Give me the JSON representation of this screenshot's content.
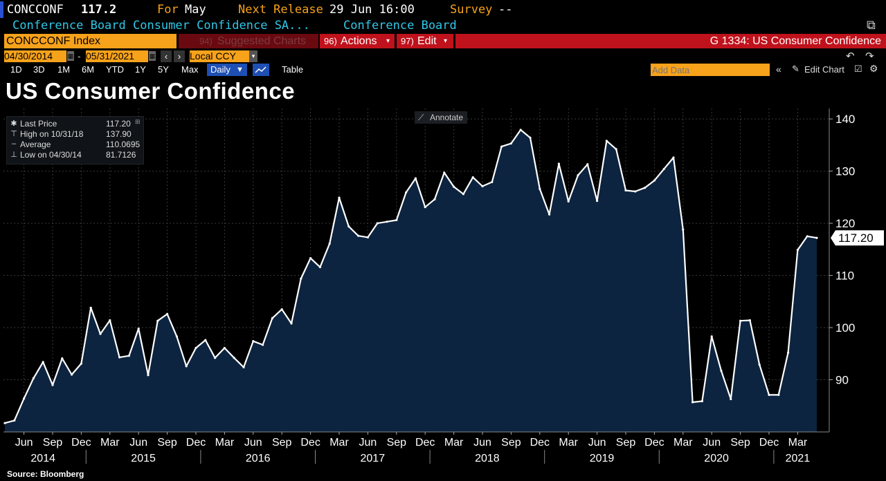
{
  "header": {
    "ticker": "CONCCONF",
    "price": "117.2",
    "for_label": "For",
    "for_value": "May",
    "next_release_label": "Next Release",
    "next_release_value": "29 Jun 16:00",
    "survey_label": "Survey",
    "survey_value": "--",
    "description": "Conference Board Consumer Confidence SA...",
    "source_name": "Conference Board"
  },
  "toolbar": {
    "security": "CONCCONF Index",
    "suggested_num": "94)",
    "suggested_label": "Suggested Charts",
    "actions_num": "96)",
    "actions_label": "Actions",
    "edit_num": "97)",
    "edit_label": "Edit",
    "chart_id": "G 1334: US Consumer Confidence",
    "date_from": "04/30/2014",
    "date_to": "05/31/2021",
    "currency": "Local CCY",
    "periods": [
      "1D",
      "3D",
      "1M",
      "6M",
      "YTD",
      "1Y",
      "5Y",
      "Max"
    ],
    "frequency": "Daily",
    "table_label": "Table",
    "add_data_placeholder": "Add Data",
    "edit_chart_label": "Edit Chart"
  },
  "legend": {
    "items": [
      {
        "label": "Last Price",
        "value": "117.20"
      },
      {
        "label": "High on 10/31/18",
        "value": "137.90"
      },
      {
        "label": "Average",
        "value": "110.0695"
      },
      {
        "label": "Low on 04/30/14",
        "value": "81.7126"
      }
    ]
  },
  "annotate_label": "Annotate",
  "source": "Source: Bloomberg",
  "colors": {
    "background": "#000000",
    "area_fill": "#0d2440",
    "line": "#ffffff",
    "grid": "#3a3a3a",
    "accent_orange": "#f7a21b",
    "accent_red": "#c0121c",
    "cyan_text": "#30c8e8"
  },
  "chart_data": {
    "type": "area",
    "title": "US Consumer Confidence",
    "ylim": [
      80,
      142
    ],
    "yticks": [
      90,
      100,
      110,
      120,
      130,
      140
    ],
    "grid": true,
    "legend_position": "top-left",
    "last_value_label": "117.20",
    "x_month_ticks": [
      "Jun",
      "Sep",
      "Dec",
      "Mar",
      "Jun",
      "Sep",
      "Dec",
      "Mar",
      "Jun",
      "Sep",
      "Dec",
      "Mar",
      "Jun",
      "Sep",
      "Dec",
      "Mar",
      "Jun",
      "Sep",
      "Dec",
      "Mar",
      "Jun",
      "Sep",
      "Dec",
      "Mar",
      "Jun",
      "Sep",
      "Dec",
      "Mar"
    ],
    "x_year_labels": [
      "2014",
      "2015",
      "2016",
      "2017",
      "2018",
      "2019",
      "2020",
      "2021"
    ],
    "x_start": "2014-04",
    "series": [
      {
        "values": [
          81.7,
          82.2,
          86.4,
          90.3,
          93.4,
          89.0,
          94.1,
          91.0,
          93.1,
          103.8,
          98.8,
          101.4,
          94.3,
          94.6,
          99.8,
          90.9,
          101.3,
          102.6,
          98.3,
          92.6,
          96.1,
          97.6,
          94.2,
          96.1,
          94.2,
          92.4,
          97.4,
          96.7,
          101.8,
          103.5,
          100.8,
          109.4,
          113.3,
          111.6,
          116.1,
          124.9,
          119.4,
          117.6,
          117.3,
          120.0,
          120.3,
          120.6,
          125.9,
          128.6,
          123.1,
          124.6,
          129.7,
          127.0,
          125.6,
          128.8,
          127.1,
          127.9,
          134.7,
          135.3,
          137.9,
          136.4,
          126.6,
          121.7,
          131.4,
          124.2,
          129.2,
          131.3,
          124.3,
          135.8,
          134.2,
          126.3,
          126.1,
          126.8,
          128.2,
          130.4,
          132.6,
          118.8,
          85.7,
          85.9,
          98.3,
          91.7,
          86.3,
          101.3,
          101.4,
          92.9,
          87.1,
          87.1,
          95.2,
          114.9,
          117.5,
          117.2
        ]
      }
    ]
  }
}
